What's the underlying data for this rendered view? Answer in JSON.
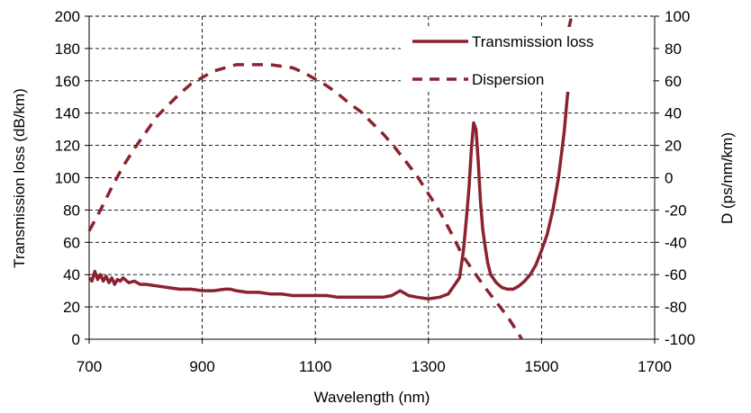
{
  "chart_data": {
    "type": "line",
    "title": "",
    "xlabel": "Wavelength (nm)",
    "ylabel": "Transmission loss (dB/km)",
    "y2label": "D (ps/nm/km)",
    "xlim": [
      700,
      1700
    ],
    "ylim": [
      0,
      200
    ],
    "y2lim": [
      -100,
      100
    ],
    "x_ticks": [
      700,
      900,
      1100,
      1300,
      1500,
      1700
    ],
    "y_ticks": [
      0,
      20,
      40,
      60,
      80,
      100,
      120,
      140,
      160,
      180,
      200
    ],
    "y2_ticks": [
      -100,
      -80,
      -60,
      -40,
      -20,
      0,
      20,
      40,
      60,
      80,
      100
    ],
    "grid": true,
    "legend_position": "top-right",
    "series_color": "#8b2230",
    "series": [
      {
        "name": "Transmission loss",
        "axis": "left",
        "style": "solid",
        "x": [
          700,
          705,
          710,
          715,
          720,
          725,
          730,
          735,
          740,
          745,
          750,
          755,
          760,
          770,
          780,
          790,
          800,
          820,
          840,
          860,
          880,
          900,
          920,
          940,
          950,
          960,
          980,
          1000,
          1020,
          1040,
          1060,
          1080,
          1100,
          1120,
          1140,
          1160,
          1180,
          1200,
          1220,
          1235,
          1245,
          1250,
          1255,
          1265,
          1280,
          1300,
          1320,
          1335,
          1345,
          1355,
          1362,
          1368,
          1372,
          1376,
          1380,
          1384,
          1388,
          1392,
          1396,
          1400,
          1405,
          1410,
          1420,
          1430,
          1440,
          1450,
          1460,
          1470,
          1480,
          1490,
          1500,
          1510,
          1520,
          1530,
          1540,
          1545,
          1550
        ],
        "y": [
          38,
          36,
          42,
          37,
          40,
          36,
          39,
          35,
          38,
          34,
          37,
          36,
          38,
          35,
          36,
          34,
          34,
          33,
          32,
          31,
          31,
          30,
          30,
          31,
          31,
          30,
          29,
          29,
          28,
          28,
          27,
          27,
          27,
          27,
          26,
          26,
          26,
          26,
          26,
          27,
          29,
          30,
          29,
          27,
          26,
          25,
          26,
          28,
          33,
          38,
          55,
          78,
          95,
          118,
          134,
          130,
          110,
          85,
          68,
          58,
          47,
          40,
          35,
          32,
          31,
          31,
          33,
          36,
          40,
          46,
          55,
          65,
          80,
          100,
          128,
          148,
          165
        ]
      },
      {
        "name": "Dispersion",
        "axis": "right",
        "style": "dashed",
        "x": [
          700,
          720,
          740,
          760,
          780,
          800,
          820,
          840,
          860,
          880,
          900,
          920,
          940,
          960,
          980,
          1000,
          1020,
          1040,
          1060,
          1080,
          1100,
          1120,
          1140,
          1160,
          1180,
          1200,
          1220,
          1240,
          1260,
          1280,
          1300,
          1320,
          1340,
          1360,
          1380,
          1400,
          1420,
          1440,
          1460,
          1465
        ],
        "y": [
          -33,
          -20,
          -6,
          7,
          18,
          28,
          38,
          45,
          52,
          58,
          62,
          66,
          68,
          70,
          70,
          70,
          70,
          69,
          68,
          65,
          61,
          57,
          52,
          46,
          41,
          34,
          27,
          19,
          10,
          1,
          -10,
          -21,
          -34,
          -48,
          -58,
          -68,
          -77,
          -86,
          -97,
          -100
        ]
      },
      {
        "name": "",
        "axis": "right",
        "style": "dashed",
        "x": [
          1548,
          1553
        ],
        "y": [
          92,
          100
        ]
      }
    ]
  }
}
